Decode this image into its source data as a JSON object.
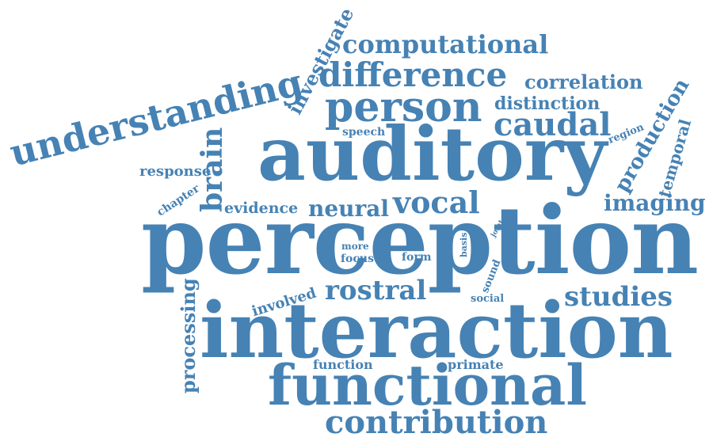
{
  "style": {
    "word_color": "#4682b4",
    "background": "#ffffff"
  },
  "words": {
    "perception": "perception",
    "interaction": "interaction",
    "auditory": "auditory",
    "functional": "functional",
    "understanding": "understanding",
    "person": "person",
    "difference": "difference",
    "computational": "computational",
    "contribution": "contribution",
    "caudal": "caudal",
    "vocal": "vocal",
    "rostral": "rostral",
    "studies": "studies",
    "neural": "neural",
    "brain": "brain",
    "investigate": "investigate",
    "correlation": "correlation",
    "distinction": "distinction",
    "production": "production",
    "imaging": "imaging",
    "temporal": "temporal",
    "processing": "processing",
    "evidence": "evidence",
    "response": "response",
    "involved": "involved",
    "function": "function",
    "primate": "primate",
    "speech": "speech",
    "chapter": "chapter",
    "region": "region",
    "more": "more",
    "focus": "focus",
    "form": "form",
    "basis": "basis",
    "joint": "joint",
    "sound": "sound",
    "social": "social"
  }
}
